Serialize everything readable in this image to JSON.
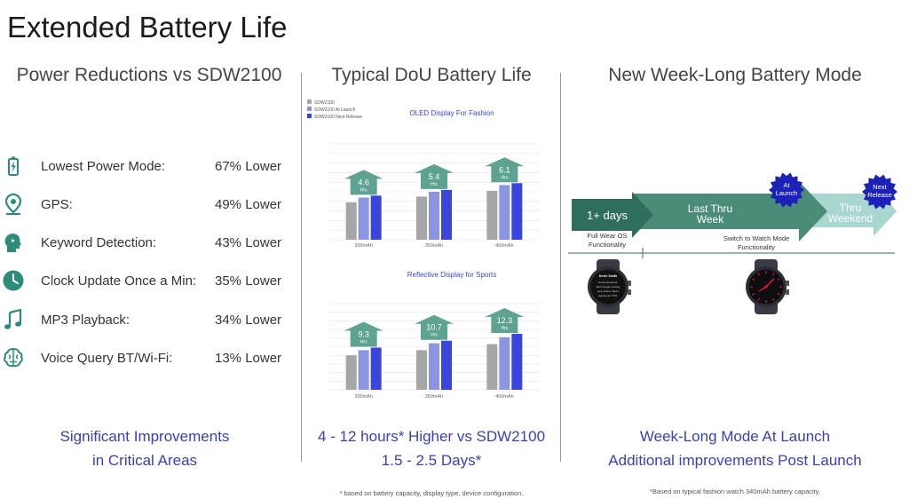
{
  "title": "Extended Battery Life",
  "left": {
    "heading": "Power Reductions vs SDW2100",
    "items": [
      {
        "label": "Lowest Power Mode:",
        "value": "67% Lower",
        "icon": "battery-icon"
      },
      {
        "label": "GPS:",
        "value": "49% Lower",
        "icon": "location-pin-icon"
      },
      {
        "label": "Keyword Detection:",
        "value": "43% Lower",
        "icon": "speaking-head-icon"
      },
      {
        "label": "Clock Update Once a Min:",
        "value": "35% Lower",
        "icon": "clock-icon"
      },
      {
        "label": "MP3 Playback:",
        "value": "34% Lower",
        "icon": "music-note-icon"
      },
      {
        "label": "Voice Query BT/Wi-Fi:",
        "value": "13% Lower",
        "icon": "brain-icon"
      }
    ],
    "summary_line1": "Significant Improvements",
    "summary_line2": "in Critical Areas",
    "icon_color": "#2e8b7a"
  },
  "middle": {
    "heading": "Typical DoU Battery Life",
    "summary_line1": "4 - 12 hours* Higher vs SDW2100",
    "summary_line2": "1.5 - 2.5 Days*",
    "footnote": "* based on battery capacity, display type, device configuration."
  },
  "right": {
    "heading": "New Week-Long Battery Mode",
    "arrow1": "1+ days",
    "arrow2_line1": "Last Thru",
    "arrow2_line2": "Week",
    "arrow3_line1": "Thru",
    "arrow3_line2": "Weekend",
    "badge1_line1": "At",
    "badge1_line2": "Launch",
    "badge2_line1": "Next",
    "badge2_line2": "Release",
    "label_left_line1": "Full Wear OS",
    "label_left_line2": "Functionality",
    "label_right_line1": "Switch to Watch Mode",
    "label_right_line2": "Functionality",
    "watch_screen_line1": "Kevin Smith",
    "watch_screen_line2": "Come tomorrow.",
    "watch_screen_line3": "Don't forget to bring",
    "watch_screen_line4": "your phone. We're",
    "watch_screen_line5": "leaving at 7 PM.",
    "summary_line1": "Week-Long Mode At Launch",
    "summary_line2": "Additional improvements Post Launch",
    "footnote": "*Based on typical fashion watch 340mAh battery capacity.",
    "colors": {
      "arrow_dark": "#2f6d5c",
      "arrow_mid": "#4a8c78",
      "arrow_light": "#a9d6cf",
      "badge": "#1c22b8"
    }
  },
  "chart_data": [
    {
      "type": "bar",
      "title": "OLED Display For Fashion",
      "categories": [
        "300mAh",
        "350mAh",
        "400mAh"
      ],
      "series": [
        {
          "name": "SDW2100",
          "values": [
            3.9,
            4.5,
            5.1
          ],
          "color": "#a6a6a6"
        },
        {
          "name": "SDW3100 At Launch",
          "values": [
            4.4,
            5.0,
            5.7
          ],
          "color": "#8b96e0"
        },
        {
          "name": "SDW3100 Next Release",
          "values": [
            4.6,
            5.2,
            5.9
          ],
          "color": "#3a45d9"
        }
      ],
      "annotations": [
        {
          "category": "300mAh",
          "value": "4.6",
          "unit": "Hrs"
        },
        {
          "category": "350mAh",
          "value": "5.4",
          "unit": "Hrs"
        },
        {
          "category": "400mAh",
          "value": "6.1",
          "unit": "Hrs"
        }
      ],
      "ylim": [
        0,
        10
      ],
      "legend": "top-left",
      "grid": true
    },
    {
      "type": "bar",
      "title": "Reflective Display for Sports",
      "categories": [
        "300mAh",
        "350mAh",
        "400mAh"
      ],
      "series": [
        {
          "name": "SDW2100",
          "values": [
            4.0,
            4.6,
            5.3
          ],
          "color": "#a6a6a6"
        },
        {
          "name": "SDW3100 At Launch",
          "values": [
            4.6,
            5.4,
            6.1
          ],
          "color": "#8b96e0"
        },
        {
          "name": "SDW3100 Next Release",
          "values": [
            4.9,
            5.7,
            6.5
          ],
          "color": "#3a45d9"
        }
      ],
      "annotations": [
        {
          "category": "300mAh",
          "value": "9.3",
          "unit": "Hrs"
        },
        {
          "category": "350mAh",
          "value": "10.7",
          "unit": "Hrs"
        },
        {
          "category": "400mAh",
          "value": "12.3",
          "unit": "Hrs"
        }
      ],
      "ylim": [
        0,
        10
      ],
      "legend": "none",
      "grid": true
    }
  ]
}
